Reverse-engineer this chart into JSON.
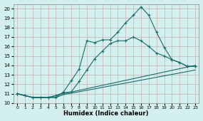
{
  "title": "",
  "xlabel": "Humidex (Indice chaleur)",
  "bg_color": "#d4f0ee",
  "grid_color": "#c8b0b0",
  "line_color": "#1a6b6b",
  "xlim": [
    -0.5,
    23.5
  ],
  "ylim": [
    10,
    20.5
  ],
  "yticks": [
    10,
    11,
    12,
    13,
    14,
    15,
    16,
    17,
    18,
    19,
    20
  ],
  "xticks": [
    0,
    1,
    2,
    3,
    4,
    5,
    6,
    7,
    8,
    9,
    10,
    11,
    12,
    13,
    14,
    15,
    16,
    17,
    18,
    19,
    20,
    21,
    22,
    23
  ],
  "lines": [
    {
      "x": [
        0,
        1,
        2,
        3,
        4,
        5,
        6,
        7,
        8,
        9,
        10,
        11,
        12,
        13,
        14,
        15,
        16,
        17,
        18,
        19,
        20,
        21,
        22,
        23
      ],
      "y": [
        11,
        10.8,
        10.6,
        10.6,
        10.6,
        10.6,
        11.2,
        12.4,
        13.6,
        16.6,
        16.4,
        16.7,
        16.7,
        17.5,
        18.5,
        19.3,
        20.2,
        19.3,
        17.5,
        15.9,
        14.6,
        14.3,
        13.9,
        13.9
      ],
      "marker": true
    },
    {
      "x": [
        0,
        1,
        2,
        3,
        4,
        5,
        6,
        7,
        8,
        9,
        10,
        11,
        12,
        13,
        14,
        15,
        16,
        17,
        18,
        19,
        20,
        21,
        22,
        23
      ],
      "y": [
        11,
        10.8,
        10.6,
        10.6,
        10.6,
        10.8,
        11.1,
        11.2,
        12.3,
        13.5,
        14.7,
        15.5,
        16.3,
        16.6,
        16.6,
        17.0,
        16.6,
        16.0,
        15.3,
        15.0,
        14.6,
        14.3,
        13.9,
        13.9
      ],
      "marker": true
    },
    {
      "x": [
        0,
        1,
        2,
        3,
        4,
        5,
        6,
        23
      ],
      "y": [
        11,
        10.8,
        10.6,
        10.6,
        10.6,
        10.6,
        10.9,
        13.5
      ],
      "marker": false
    },
    {
      "x": [
        0,
        1,
        2,
        3,
        4,
        5,
        6,
        23
      ],
      "y": [
        11,
        10.8,
        10.6,
        10.6,
        10.6,
        10.8,
        11.0,
        14.0
      ],
      "marker": false
    }
  ]
}
